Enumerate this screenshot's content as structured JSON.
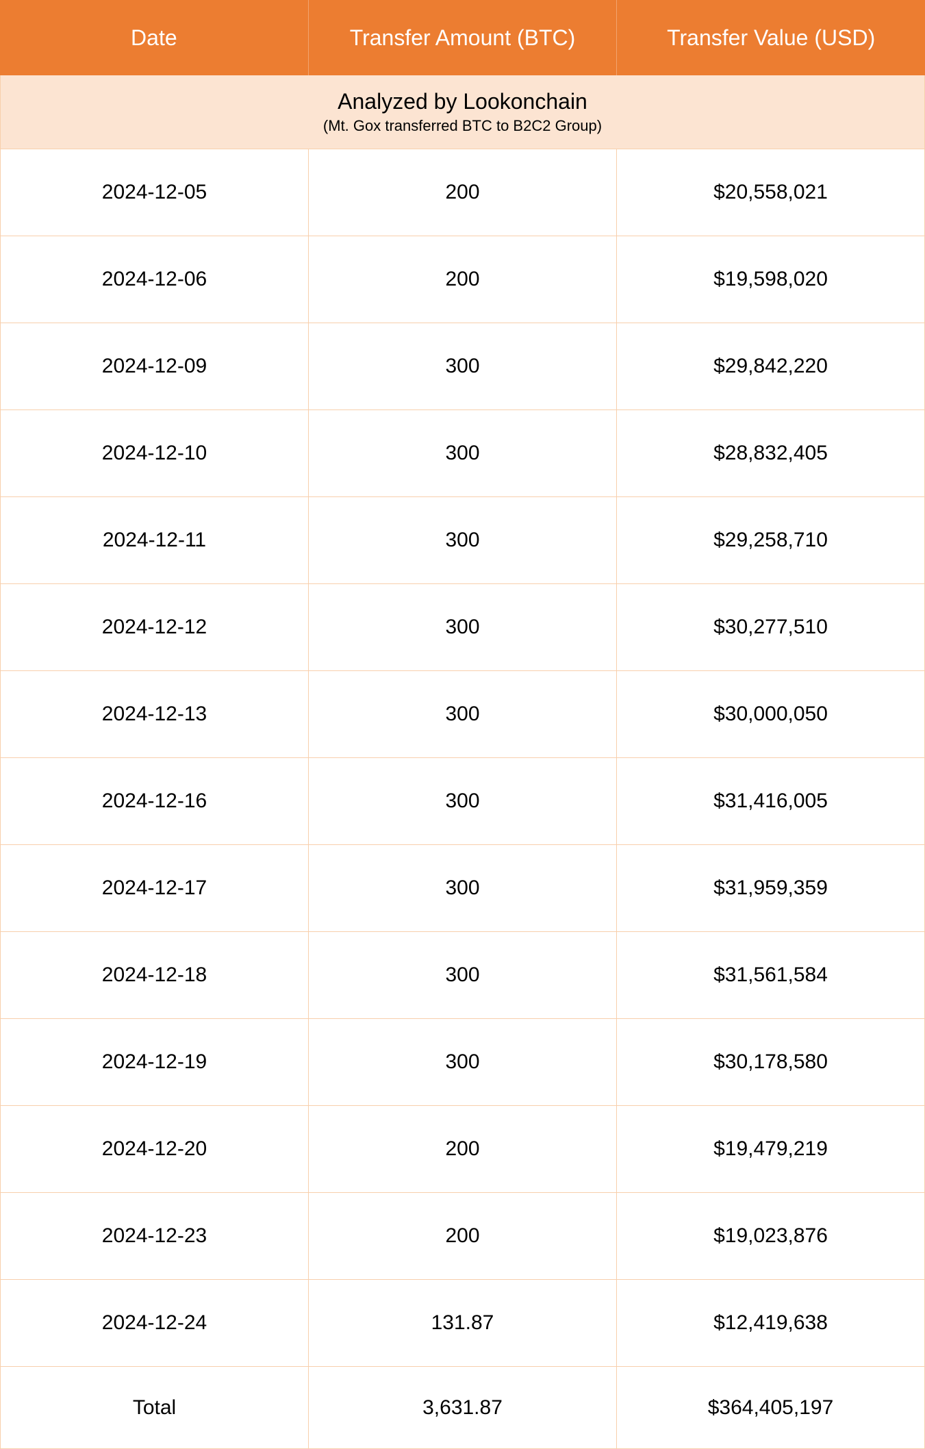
{
  "table": {
    "header_bg": "#ec7d31",
    "header_text_color": "#ffffff",
    "subtitle_bg": "#fce4d2",
    "border_color": "#f8cfac",
    "cell_bg": "#ffffff",
    "text_color": "#000000",
    "header_fontsize": 32,
    "cell_fontsize": 30,
    "subtitle_main_fontsize": 32,
    "subtitle_sub_fontsize": 22,
    "columns": [
      "Date",
      "Transfer Amount (BTC)",
      "Transfer Value (USD)"
    ],
    "subtitle_main": "Analyzed by Lookonchain",
    "subtitle_sub": "(Mt. Gox transferred BTC to B2C2 Group)",
    "rows": [
      {
        "date": "2024-12-05",
        "amount": "200",
        "value": "$20,558,021"
      },
      {
        "date": "2024-12-06",
        "amount": "200",
        "value": "$19,598,020"
      },
      {
        "date": "2024-12-09",
        "amount": "300",
        "value": "$29,842,220"
      },
      {
        "date": "2024-12-10",
        "amount": "300",
        "value": "$28,832,405"
      },
      {
        "date": "2024-12-11",
        "amount": "300",
        "value": "$29,258,710"
      },
      {
        "date": "2024-12-12",
        "amount": "300",
        "value": "$30,277,510"
      },
      {
        "date": "2024-12-13",
        "amount": "300",
        "value": "$30,000,050"
      },
      {
        "date": "2024-12-16",
        "amount": "300",
        "value": "$31,416,005"
      },
      {
        "date": "2024-12-17",
        "amount": "300",
        "value": "$31,959,359"
      },
      {
        "date": "2024-12-18",
        "amount": "300",
        "value": "$31,561,584"
      },
      {
        "date": "2024-12-19",
        "amount": "300",
        "value": "$30,178,580"
      },
      {
        "date": "2024-12-20",
        "amount": "200",
        "value": "$19,479,219"
      },
      {
        "date": "2024-12-23",
        "amount": "200",
        "value": "$19,023,876"
      },
      {
        "date": "2024-12-24",
        "amount": "131.87",
        "value": "$12,419,638"
      }
    ],
    "total": {
      "label": "Total",
      "amount": "3,631.87",
      "value": "$364,405,197"
    }
  }
}
